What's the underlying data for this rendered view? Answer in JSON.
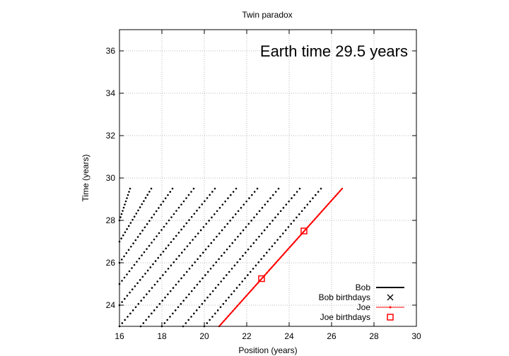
{
  "chart_data": {
    "type": "scatter",
    "title": "Twin paradox",
    "xlabel": "Position (years)",
    "ylabel": "Time (years)",
    "xlim": [
      16,
      30
    ],
    "ylim": [
      23,
      37
    ],
    "x_ticks": [
      16,
      18,
      20,
      22,
      24,
      26,
      28,
      30
    ],
    "y_ticks": [
      24,
      26,
      28,
      30,
      32,
      34,
      36
    ],
    "grid": true,
    "legend_position": "bottom-right",
    "annotation": "Earth time 29.5 years",
    "series": [
      {
        "name": "Bob",
        "style": "dots",
        "color": "#000000",
        "worldlines": [
          {
            "from": [
              16.0,
              28.0
            ],
            "to": [
              16.5,
              29.5
            ]
          },
          {
            "from": [
              16.0,
              27.0
            ],
            "to": [
              17.5,
              29.5
            ]
          },
          {
            "from": [
              16.0,
              26.0
            ],
            "to": [
              18.5,
              29.5
            ]
          },
          {
            "from": [
              16.0,
              25.0
            ],
            "to": [
              19.5,
              29.5
            ]
          },
          {
            "from": [
              16.0,
              24.0
            ],
            "to": [
              20.5,
              29.5
            ]
          },
          {
            "from": [
              16.0,
              23.0
            ],
            "to": [
              21.5,
              29.5
            ]
          },
          {
            "from": [
              17.0,
              23.0
            ],
            "to": [
              22.5,
              29.5
            ]
          },
          {
            "from": [
              18.0,
              23.0
            ],
            "to": [
              23.5,
              29.5
            ]
          },
          {
            "from": [
              19.0,
              23.0
            ],
            "to": [
              24.5,
              29.5
            ]
          },
          {
            "from": [
              20.0,
              23.0
            ],
            "to": [
              25.5,
              29.5
            ]
          }
        ]
      },
      {
        "name": "Bob birthdays",
        "style": "x-marker",
        "color": "#000000",
        "points": []
      },
      {
        "name": "Joe",
        "style": "line",
        "color": "#ff0000",
        "worldline": {
          "from": [
            20.7,
            23.0
          ],
          "to": [
            26.5,
            29.5
          ]
        }
      },
      {
        "name": "Joe birthdays",
        "style": "square-marker",
        "color": "#ff0000",
        "points": [
          [
            22.7,
            25.25
          ],
          [
            24.7,
            27.5
          ]
        ]
      }
    ]
  }
}
